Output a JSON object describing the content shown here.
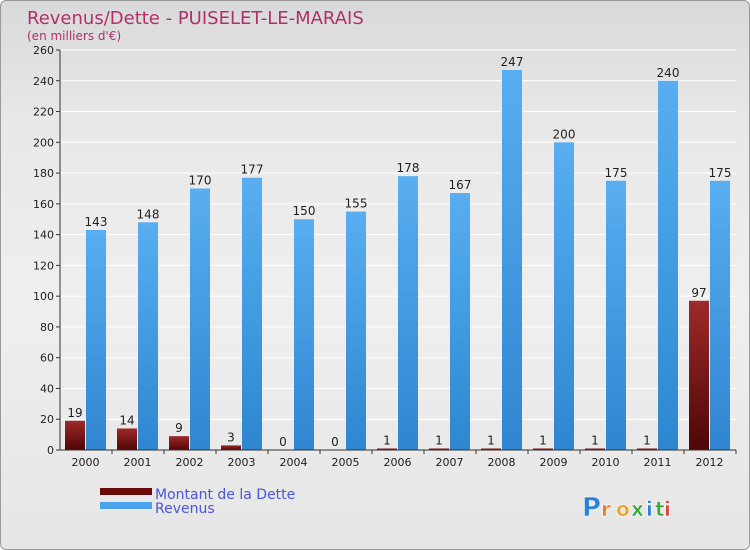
{
  "chart_data": {
    "type": "bar",
    "title": "Revenus/Dette - PUISELET-LE-MARAIS",
    "subtitle": "(en milliers d'€)",
    "categories": [
      "2000",
      "2001",
      "2002",
      "2003",
      "2004",
      "2005",
      "2006",
      "2007",
      "2008",
      "2009",
      "2010",
      "2011",
      "2012"
    ],
    "series": [
      {
        "name": "Montant de la Dette",
        "color": "#7a1010",
        "values": [
          19,
          14,
          9,
          3,
          0,
          0,
          1,
          1,
          1,
          1,
          1,
          1,
          97
        ]
      },
      {
        "name": "Revenus",
        "color": "#3d9be9",
        "values": [
          143,
          148,
          170,
          177,
          150,
          155,
          178,
          167,
          247,
          200,
          175,
          240,
          175
        ]
      }
    ],
    "ylim": [
      0,
      260
    ],
    "yticks": [
      0,
      20,
      40,
      60,
      80,
      100,
      120,
      140,
      160,
      180,
      200,
      220,
      240,
      260
    ],
    "grid": true,
    "legend": "bottom-left",
    "xlabel": "",
    "ylabel": ""
  },
  "brand": "Proxiti",
  "colors": {
    "title": "#b0306a",
    "legend_text": "#4a56d8",
    "axis_text": "#222222"
  }
}
